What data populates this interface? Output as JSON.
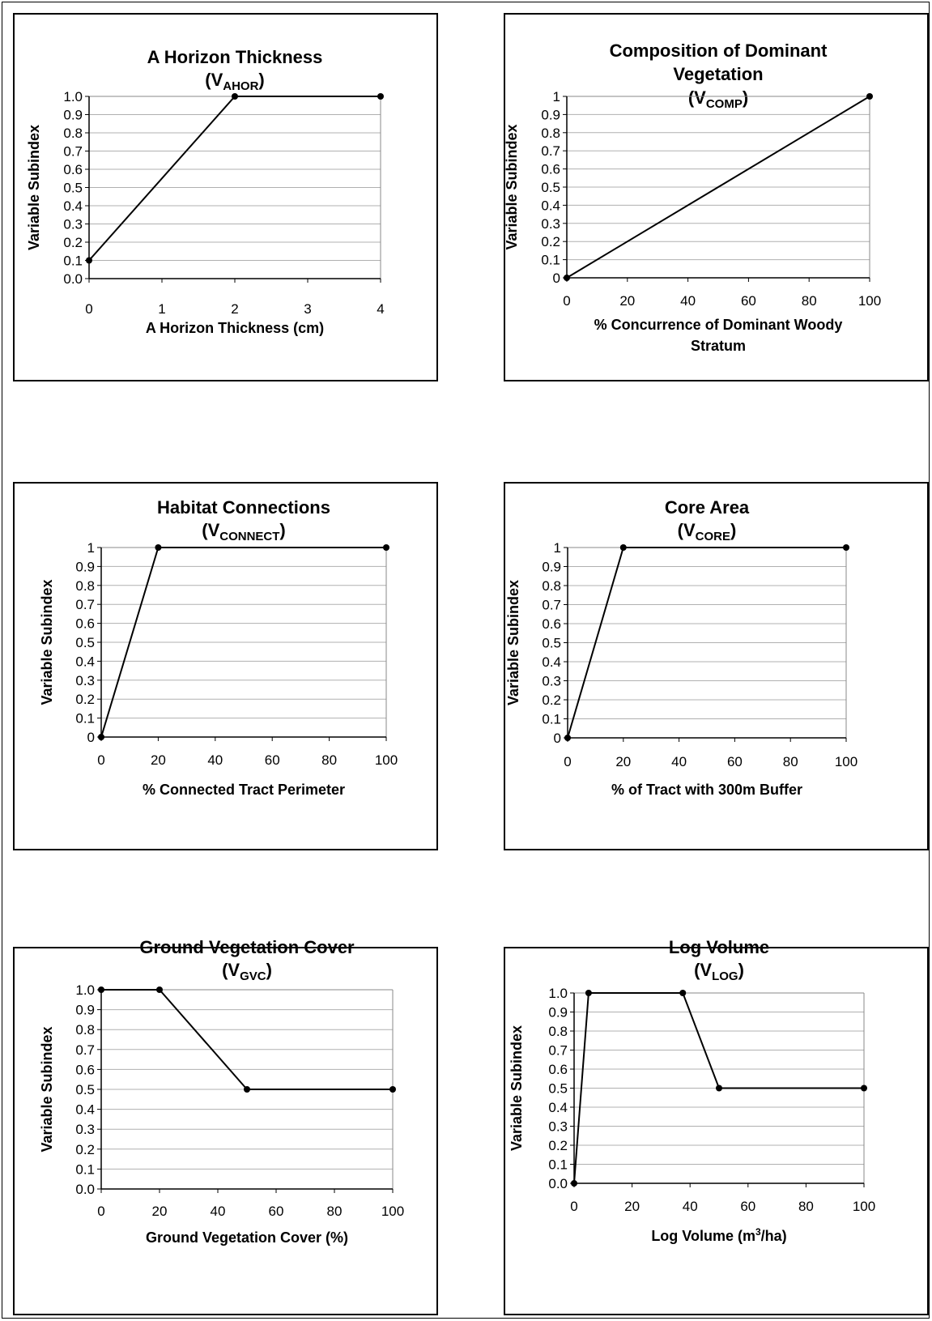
{
  "chart_data": [
    {
      "type": "line",
      "title_lines": [
        "A Horizon Thickness"
      ],
      "symbol": {
        "main": "V",
        "sub": "AHOR"
      },
      "xlabel_lines": [
        "A Horizon Thickness (cm)"
      ],
      "ylabel": "Variable Subindex",
      "x": [
        0,
        2,
        4
      ],
      "y": [
        0.1,
        1.0,
        1.0
      ],
      "xlim": [
        0,
        4
      ],
      "ylim": [
        0,
        1
      ],
      "xticks": [
        "0",
        "1",
        "2",
        "3",
        "4"
      ],
      "yticks": [
        "0.0",
        "0.1",
        "0.2",
        "0.3",
        "0.4",
        "0.5",
        "0.6",
        "0.7",
        "0.8",
        "0.9",
        "1.0"
      ],
      "grid": true
    },
    {
      "type": "line",
      "title_lines": [
        "Composition of Dominant",
        "Vegetation"
      ],
      "symbol": {
        "main": "V",
        "sub": "COMP"
      },
      "xlabel_lines": [
        "% Concurrence of Dominant Woody",
        "Stratum"
      ],
      "ylabel": "Variable Subindex",
      "x": [
        0,
        100
      ],
      "y": [
        0,
        1
      ],
      "xlim": [
        0,
        100
      ],
      "ylim": [
        0,
        1
      ],
      "xticks": [
        "0",
        "20",
        "40",
        "60",
        "80",
        "100"
      ],
      "yticks": [
        "0",
        "0.1",
        "0.2",
        "0.3",
        "0.4",
        "0.5",
        "0.6",
        "0.7",
        "0.8",
        "0.9",
        "1"
      ],
      "grid": true
    },
    {
      "type": "line",
      "title_lines": [
        "Habitat Connections"
      ],
      "symbol": {
        "main": "V",
        "sub": "CONNECT"
      },
      "xlabel_lines": [
        "% Connected Tract Perimeter"
      ],
      "ylabel": "Variable Subindex",
      "x": [
        0,
        20,
        100
      ],
      "y": [
        0,
        1,
        1
      ],
      "xlim": [
        0,
        100
      ],
      "ylim": [
        0,
        1
      ],
      "xticks": [
        "0",
        "20",
        "40",
        "60",
        "80",
        "100"
      ],
      "yticks": [
        "0",
        "0.1",
        "0.2",
        "0.3",
        "0.4",
        "0.5",
        "0.6",
        "0.7",
        "0.8",
        "0.9",
        "1"
      ],
      "grid": true
    },
    {
      "type": "line",
      "title_lines": [
        "Core Area"
      ],
      "symbol": {
        "main": "V",
        "sub": "CORE"
      },
      "xlabel_lines": [
        "% of Tract with 300m Buffer"
      ],
      "ylabel": "Variable Subindex",
      "x": [
        0,
        20,
        100
      ],
      "y": [
        0,
        1,
        1
      ],
      "xlim": [
        0,
        100
      ],
      "ylim": [
        0,
        1
      ],
      "xticks": [
        "0",
        "20",
        "40",
        "60",
        "80",
        "100"
      ],
      "yticks": [
        "0",
        "0.1",
        "0.2",
        "0.3",
        "0.4",
        "0.5",
        "0.6",
        "0.7",
        "0.8",
        "0.9",
        "1"
      ],
      "grid": true
    },
    {
      "type": "line",
      "title_lines": [
        "Ground Vegetation Cover"
      ],
      "symbol": {
        "main": "V",
        "sub": "GVC"
      },
      "xlabel_lines": [
        "Ground Vegetation Cover (%)"
      ],
      "ylabel": "Variable Subindex",
      "x": [
        0,
        20,
        50,
        100
      ],
      "y": [
        1.0,
        1.0,
        0.5,
        0.5
      ],
      "xlim": [
        0,
        100
      ],
      "ylim": [
        0,
        1
      ],
      "xticks": [
        "0",
        "20",
        "40",
        "60",
        "80",
        "100"
      ],
      "yticks": [
        "0.0",
        "0.1",
        "0.2",
        "0.3",
        "0.4",
        "0.5",
        "0.6",
        "0.7",
        "0.8",
        "0.9",
        "1.0"
      ],
      "grid": true
    },
    {
      "type": "line",
      "title_lines": [
        "Log Volume"
      ],
      "symbol": {
        "main": "V",
        "sub": "LOG"
      },
      "xlabel_lines": [
        "Log Volume (m3/ha)"
      ],
      "ylabel": "Variable Subindex",
      "x": [
        0,
        5,
        37.5,
        50,
        100
      ],
      "y": [
        0,
        1.0,
        1.0,
        0.5,
        0.5
      ],
      "xlim": [
        0,
        100
      ],
      "ylim": [
        0,
        1
      ],
      "xticks": [
        "0",
        "20",
        "40",
        "60",
        "80",
        "100"
      ],
      "yticks": [
        "0.0",
        "0.1",
        "0.2",
        "0.3",
        "0.4",
        "0.5",
        "0.6",
        "0.7",
        "0.8",
        "0.9",
        "1.0"
      ],
      "grid": true
    }
  ]
}
